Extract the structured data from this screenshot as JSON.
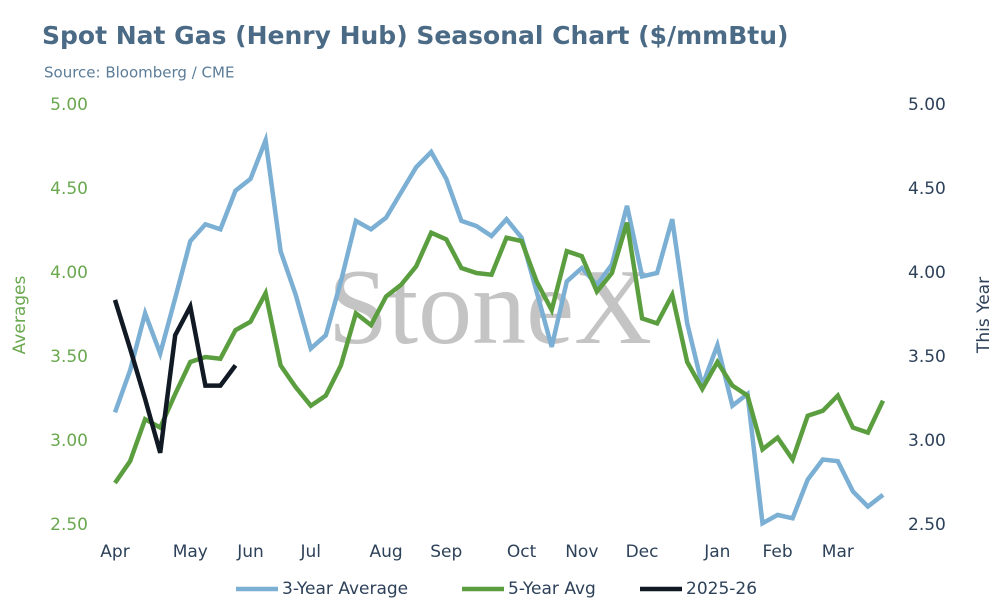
{
  "chart_data": {
    "type": "line",
    "title": "Spot Nat Gas (Henry Hub) Seasonal Chart ($/mmBtu)",
    "subtitle": "Source: Bloomberg / CME",
    "watermark": "StoneX",
    "y_label": "Averages",
    "y2_label": "This Year",
    "categories": [
      "Apr",
      null,
      null,
      null,
      null,
      "May",
      null,
      null,
      null,
      "Jun",
      null,
      null,
      null,
      "Jul",
      null,
      null,
      null,
      null,
      "Aug",
      null,
      null,
      null,
      "Sep",
      null,
      null,
      null,
      null,
      "Oct",
      null,
      null,
      null,
      "Nov",
      null,
      null,
      null,
      "Dec",
      null,
      null,
      null,
      null,
      "Jan",
      null,
      null,
      null,
      "Feb",
      null,
      null,
      null,
      "Mar",
      null,
      null,
      null
    ],
    "series": [
      {
        "name": "3-Year Average",
        "color": "#7bafd4",
        "values": [
          3.17,
          3.42,
          3.76,
          3.52,
          3.85,
          4.19,
          4.29,
          4.26,
          4.49,
          4.56,
          4.79,
          4.13,
          3.87,
          3.55,
          3.63,
          3.95,
          4.31,
          4.26,
          4.33,
          4.48,
          4.63,
          4.72,
          4.56,
          4.31,
          4.28,
          4.22,
          4.32,
          4.21,
          3.89,
          3.56,
          3.95,
          4.03,
          3.93,
          4.05,
          4.4,
          3.98,
          4.0,
          4.32,
          3.7,
          3.33,
          3.57,
          3.21,
          3.28,
          2.51,
          2.56,
          2.54,
          2.77,
          2.89,
          2.88,
          2.7,
          2.61,
          2.68
        ]
      },
      {
        "name": "5-Year Avg",
        "color": "#5b9e3f",
        "values": [
          2.75,
          2.88,
          3.13,
          3.08,
          3.28,
          3.47,
          3.5,
          3.49,
          3.66,
          3.71,
          3.88,
          3.45,
          3.32,
          3.21,
          3.27,
          3.45,
          3.76,
          3.69,
          3.86,
          3.93,
          4.04,
          4.24,
          4.2,
          4.03,
          4.0,
          3.99,
          4.21,
          4.19,
          3.95,
          3.78,
          4.13,
          4.1,
          3.89,
          4.0,
          4.3,
          3.73,
          3.7,
          3.87,
          3.47,
          3.31,
          3.47,
          3.33,
          3.27,
          2.95,
          3.02,
          2.89,
          3.15,
          3.18,
          3.27,
          3.08,
          3.05,
          3.24
        ]
      },
      {
        "name": "2025-26",
        "color": "#111a24",
        "axis": "y2",
        "values": [
          3.84,
          3.55,
          3.25,
          2.93,
          3.63,
          3.8,
          3.33,
          3.33,
          3.45,
          null,
          null,
          null,
          null,
          null,
          null,
          null,
          null,
          null,
          null,
          null,
          null,
          null,
          null,
          null,
          null,
          null,
          null,
          null,
          null,
          null,
          null,
          null,
          null,
          null,
          null,
          null,
          null,
          null,
          null,
          null,
          null,
          null,
          null,
          null,
          null,
          null,
          null,
          null,
          null,
          null,
          null,
          null
        ]
      }
    ],
    "ylim": [
      2.5,
      5
    ],
    "yticks": [
      {
        "value": 2.5,
        "label": "2.50"
      },
      {
        "value": 3,
        "label": "3.00"
      },
      {
        "value": 3.5,
        "label": "3.50"
      },
      {
        "value": 4,
        "label": "4.00"
      },
      {
        "value": 4.5,
        "label": "4.50"
      },
      {
        "value": 5,
        "label": "5.00"
      }
    ],
    "y2lim": [
      2.5,
      5
    ],
    "y2ticks": [
      {
        "value": 2.5,
        "label": "2.50"
      },
      {
        "value": 3,
        "label": "3.00"
      },
      {
        "value": 3.5,
        "label": "3.50"
      },
      {
        "value": 4,
        "label": "4.00"
      },
      {
        "value": 4.5,
        "label": "4.50"
      },
      {
        "value": 5,
        "label": "5.00"
      }
    ],
    "grid": false,
    "legend": "bottom"
  }
}
